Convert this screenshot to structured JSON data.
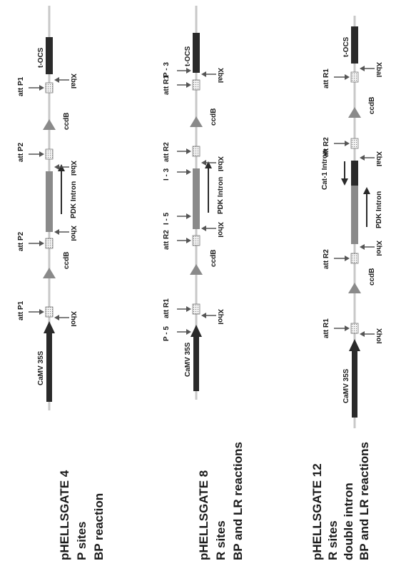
{
  "colors": {
    "backbone": "#c8c8c8",
    "dark": "#2a2a2a",
    "grey": "#8a8a8a",
    "arrow": "#555555",
    "site_fill": "#f2f2f2"
  },
  "constructs": [
    {
      "title": [
        "pHELLSGATE 4",
        "P sites",
        "BP reaction"
      ],
      "labels": {
        "promoter": "CaMV 35S",
        "site1": "att P1",
        "xhoI": "XhoI",
        "ccdb1": "ccdB",
        "site2": "att P2",
        "xhoI_2": "XhoI",
        "intron": "PDK Intron",
        "xbaI": "XbaI",
        "site3": "att P2",
        "ccdb2": "ccdB",
        "site4": "att P1",
        "xbaI_2": "XbaI",
        "terminator": "t-OCS"
      }
    },
    {
      "title": [
        "pHELLSGATE 8",
        "R sites",
        "BP and LR reactions"
      ],
      "labels": {
        "promoter": "CaMV 35S",
        "p5": "P - 5",
        "site1": "att R1",
        "xhoI": "XhoI",
        "ccdb1": "ccdB",
        "site2": "att R2",
        "xhoI_2": "XhoI",
        "i5": "I - 5",
        "intron": "PDK Intron",
        "i3": "I - 3",
        "site3": "att R2",
        "xbaI": "XbaI",
        "ccdb2": "ccdB",
        "site4": "att R1",
        "xbaI_2": "XbaI",
        "p3": "P - 3",
        "terminator": "t-OCS"
      }
    },
    {
      "title": [
        "pHELLSGATE 12",
        "R sites",
        "double intron",
        "BP and LR reactions"
      ],
      "labels": {
        "promoter": "CaMV 35S",
        "site1": "att R1",
        "xhoI": "XhoI",
        "ccdb1": "ccdB",
        "site2": "att R2",
        "xhoI_2": "XhoI",
        "intron": "PDK Intron",
        "cat": "Cat-1 Intron",
        "xbaI": "XbaI",
        "site3": "att R2",
        "ccdb2": "ccdB",
        "site4": "att R1",
        "xbaI_2": "XbaI",
        "terminator": "t-OCS"
      }
    }
  ]
}
